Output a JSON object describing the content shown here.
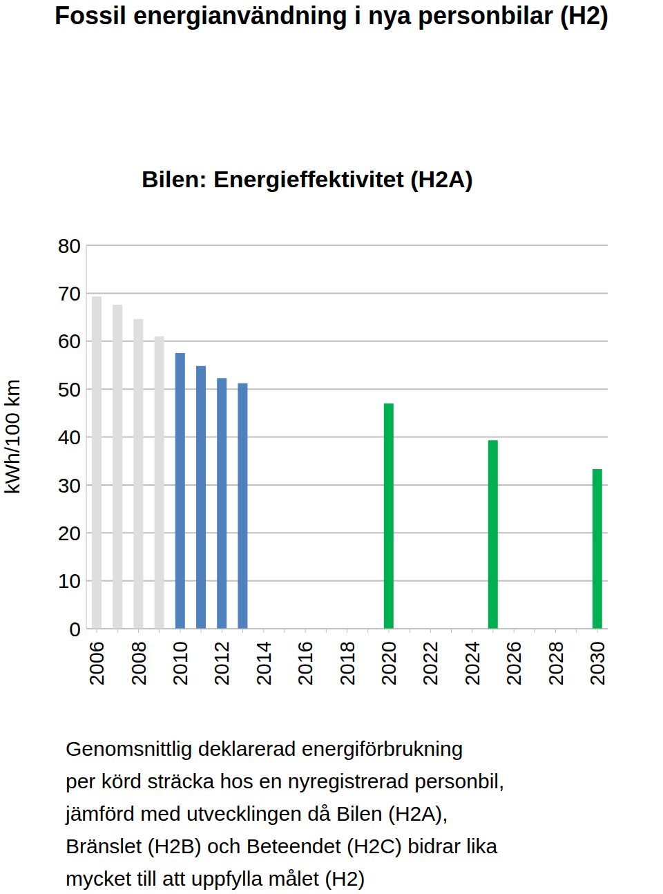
{
  "chart_data": {
    "type": "bar",
    "title": "Fossil energianvändning i nya personbilar (H2)",
    "subtitle": "Bilen: Energieffektivitet (H2A)",
    "y_label": "kWh/100 km",
    "categories": [
      "2006",
      null,
      "2008",
      null,
      "2010",
      null,
      "2012",
      null,
      "2014",
      null,
      "2016",
      null,
      "2018",
      null,
      "2020",
      null,
      "2022",
      null,
      "2024",
      null,
      "2026",
      null,
      "2028",
      null,
      "2030"
    ],
    "values": [
      69.3,
      67.6,
      64.6,
      61.0,
      57.5,
      54.8,
      52.3,
      51.2,
      null,
      null,
      null,
      null,
      null,
      null,
      47.0,
      null,
      null,
      null,
      null,
      39.3,
      null,
      null,
      null,
      null,
      33.3
    ],
    "colors": [
      "#dedede",
      "#dedede",
      "#dedede",
      "#dedede",
      "#4f81bd",
      "#4f81bd",
      "#4f81bd",
      "#4f81bd",
      null,
      null,
      null,
      null,
      null,
      null,
      "#00b050",
      null,
      null,
      null,
      null,
      "#00b050",
      null,
      null,
      null,
      null,
      "#00b050"
    ],
    "ylim": [
      0,
      80
    ],
    "yticks": [
      0,
      10,
      20,
      30,
      40,
      50,
      60,
      70,
      80
    ],
    "grid": true,
    "annotations": [
      "Genomsnittlig deklarerad energiförbrukning",
      "per körd sträcka hos en nyregistrerad personbil,",
      "jämförd med utvecklingen då Bilen (H2A),",
      "Bränslet (H2B) och Beteendet (H2C) bidrar lika",
      "mycket till att uppfylla målet (H2)"
    ]
  }
}
